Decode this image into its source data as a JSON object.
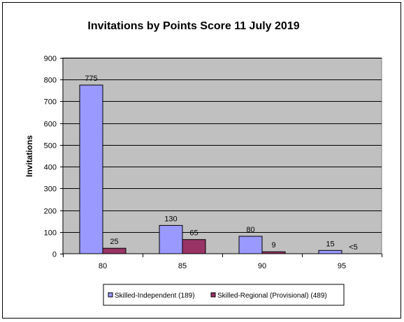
{
  "chart_data": {
    "type": "bar",
    "title": "Invitations by Points Score 11 July 2019",
    "xlabel": "",
    "ylabel": "Invitations",
    "ylim": [
      0,
      900
    ],
    "yticks": [
      0,
      100,
      200,
      300,
      400,
      500,
      600,
      700,
      800,
      900
    ],
    "grid": true,
    "legend_position": "bottom",
    "categories": [
      "80",
      "85",
      "90",
      "95"
    ],
    "series": [
      {
        "name": "Skilled-Independent (189)",
        "color": "#9999ff",
        "values": [
          775,
          130,
          80,
          15
        ],
        "labels": [
          "775",
          "130",
          "80",
          "15"
        ]
      },
      {
        "name": "Skilled-Regional (Provisional) (489)",
        "color": "#993366",
        "values": [
          25,
          65,
          9,
          0
        ],
        "labels": [
          "25",
          "65",
          "9",
          "<5"
        ]
      }
    ]
  }
}
